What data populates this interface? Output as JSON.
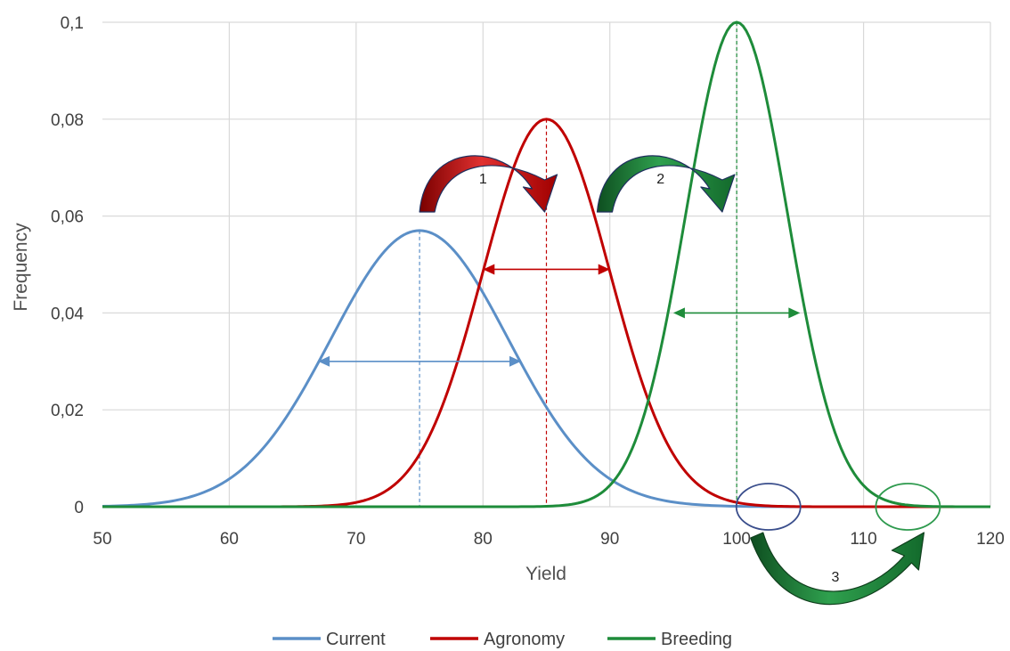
{
  "chart_data": {
    "type": "line",
    "title": "",
    "xlabel": "Yield",
    "ylabel": "Frequency",
    "xlim": [
      50,
      120
    ],
    "ylim": [
      0,
      0.1
    ],
    "x_ticks": [
      50,
      60,
      70,
      80,
      90,
      100,
      110,
      120
    ],
    "y_ticks": [
      0,
      0.02,
      0.04,
      0.06,
      0.08,
      0.1
    ],
    "x_tick_labels": [
      "50",
      "60",
      "70",
      "80",
      "90",
      "100",
      "110",
      "120"
    ],
    "y_tick_labels": [
      "0",
      "0,02",
      "0,04",
      "0,06",
      "0,08",
      "0,1"
    ],
    "grid": true,
    "legend_position": "bottom",
    "series": [
      {
        "name": "Current",
        "color": "#5b8fc7",
        "distribution": "normal",
        "mean": 75,
        "sd": 7,
        "peak": 0.057
      },
      {
        "name": "Agronomy",
        "color": "#c00000",
        "distribution": "normal",
        "mean": 85,
        "sd": 5,
        "peak": 0.08
      },
      {
        "name": "Breeding",
        "color": "#1e8c3a",
        "distribution": "normal",
        "mean": 100,
        "sd": 4,
        "peak": 0.1
      }
    ],
    "mean_lines": [
      {
        "series": "Current",
        "x": 75,
        "color": "#5b8fc7"
      },
      {
        "series": "Agronomy",
        "x": 85,
        "color": "#c00000"
      },
      {
        "series": "Breeding",
        "x": 100,
        "color": "#1e8c3a"
      }
    ],
    "spread_arrows": [
      {
        "series": "Current",
        "x1": 67,
        "x2": 83,
        "y": 0.03,
        "color": "#5b8fc7"
      },
      {
        "series": "Agronomy",
        "x1": 80,
        "x2": 90,
        "y": 0.049,
        "color": "#c00000"
      },
      {
        "series": "Breeding",
        "x1": 95,
        "x2": 105,
        "y": 0.04,
        "color": "#1e8c3a"
      }
    ],
    "shift_arrows": [
      {
        "label": "1",
        "from_x": 75,
        "to_x": 85,
        "color": "#c00000"
      },
      {
        "label": "2",
        "from_x": 89,
        "to_x": 99,
        "color": "#1e8c3a"
      },
      {
        "label": "3",
        "from_x": 102.5,
        "to_x": 113.5,
        "color": "#1e8c3a"
      }
    ],
    "tail_circles": [
      {
        "x": 102.5,
        "y": 0,
        "color": "#3a4e8c"
      },
      {
        "x": 113.5,
        "y": 0,
        "color": "#2e9a4e"
      }
    ]
  }
}
